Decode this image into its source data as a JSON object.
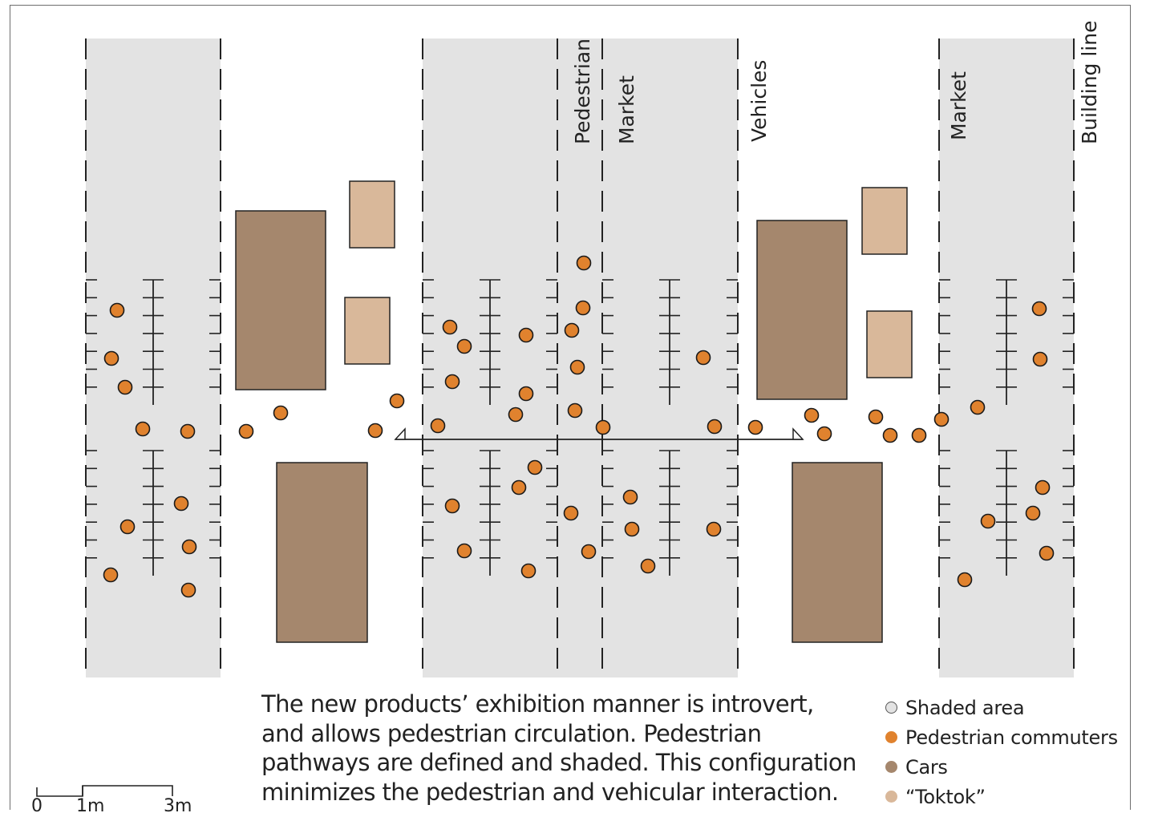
{
  "labels": {
    "pedestrian": "Pedestrian",
    "market_center": "Market",
    "vehicles": "Vehicles",
    "market_right": "Market",
    "building_line": "Building line"
  },
  "caption": [
    "The new products’ exhibition manner is introvert,",
    "and allows pedestrian circulation. Pedestrian",
    "pathways are defined and shaded. This configuration",
    "minimizes the pedestrian and vehicular interaction."
  ],
  "legend": [
    {
      "label": "Shaded area",
      "color": "#e3e3e3",
      "border": "#555555"
    },
    {
      "label": "Pedestrian commuters",
      "color": "#e0822e",
      "border": "#e0822e"
    },
    {
      "label": "Cars",
      "color": "#a5876d",
      "border": "#a5876d"
    },
    {
      "label": "“Toktok”",
      "color": "#d9b89a",
      "border": "#d9b89a"
    }
  ],
  "scale_bar": {
    "labels": [
      "0",
      "1m",
      "3m"
    ]
  },
  "colors": {
    "shaded": "#e3e3e3",
    "pedestrian": "#e0822e",
    "car": "#a5876d",
    "toktok": "#d9b89a",
    "line": "#222222"
  }
}
